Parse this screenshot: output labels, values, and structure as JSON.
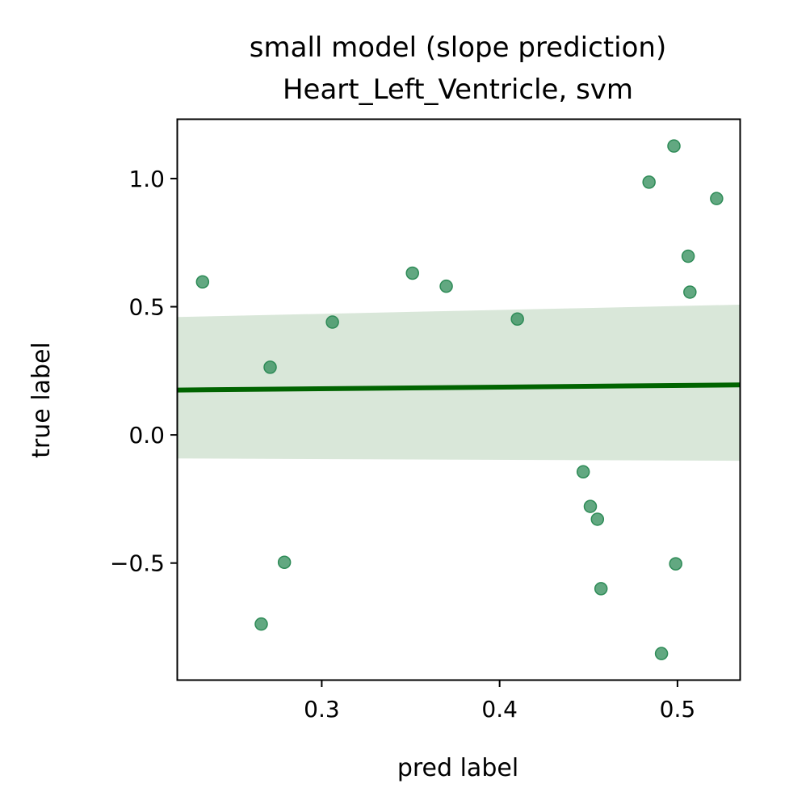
{
  "chart_data": {
    "type": "scatter",
    "title": "small model (slope prediction)",
    "subtitle": "Heart_Left_Ventricle, svm",
    "xlabel": "pred label",
    "ylabel": "true label",
    "xlim": [
      0.219,
      0.535
    ],
    "ylim": [
      -0.955,
      1.23
    ],
    "xticks": [
      {
        "value": 0.3,
        "label": "0.3"
      },
      {
        "value": 0.4,
        "label": "0.4"
      },
      {
        "value": 0.5,
        "label": "0.5"
      }
    ],
    "yticks": [
      {
        "value": 1.0,
        "label": "1.0"
      },
      {
        "value": 0.5,
        "label": "0.5"
      },
      {
        "value": 0.0,
        "label": "0.0"
      },
      {
        "value": -0.5,
        "label": "−0.5"
      }
    ],
    "grid": false,
    "points": [
      {
        "x": 0.233,
        "y": 0.597
      },
      {
        "x": 0.271,
        "y": 0.264
      },
      {
        "x": 0.266,
        "y": -0.738
      },
      {
        "x": 0.279,
        "y": -0.497
      },
      {
        "x": 0.306,
        "y": 0.44
      },
      {
        "x": 0.351,
        "y": 0.631
      },
      {
        "x": 0.37,
        "y": 0.58
      },
      {
        "x": 0.41,
        "y": 0.452
      },
      {
        "x": 0.447,
        "y": -0.144
      },
      {
        "x": 0.451,
        "y": -0.279
      },
      {
        "x": 0.455,
        "y": -0.329
      },
      {
        "x": 0.457,
        "y": -0.6
      },
      {
        "x": 0.484,
        "y": 0.986
      },
      {
        "x": 0.491,
        "y": -0.853
      },
      {
        "x": 0.498,
        "y": 1.127
      },
      {
        "x": 0.499,
        "y": -0.503
      },
      {
        "x": 0.506,
        "y": 0.697
      },
      {
        "x": 0.507,
        "y": 0.557
      },
      {
        "x": 0.522,
        "y": 0.922
      }
    ],
    "regression": {
      "line": [
        {
          "x": 0.219,
          "y": 0.175
        },
        {
          "x": 0.535,
          "y": 0.195
        }
      ],
      "band_upper": [
        {
          "x": 0.219,
          "y": 0.46
        },
        {
          "x": 0.535,
          "y": 0.508
        }
      ],
      "band_lower": [
        {
          "x": 0.219,
          "y": -0.092
        },
        {
          "x": 0.535,
          "y": -0.101
        }
      ]
    },
    "colors": {
      "points": "#2e8b57",
      "line": "#006400",
      "band": "#d9e7d9"
    }
  }
}
